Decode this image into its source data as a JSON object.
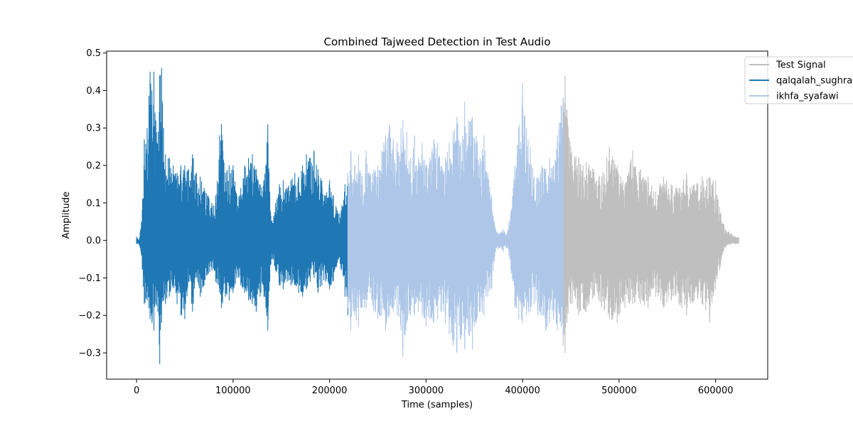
{
  "chart_data": {
    "type": "line",
    "title": "Combined Tajweed Detection in Test Audio",
    "xlabel": "Time (samples)",
    "ylabel": "Amplitude",
    "xlim": [
      -31000,
      654000
    ],
    "ylim": [
      -0.37,
      0.505
    ],
    "xticks": [
      0,
      100000,
      200000,
      300000,
      400000,
      500000,
      600000
    ],
    "yticks": [
      -0.3,
      -0.2,
      -0.1,
      0.0,
      0.1,
      0.2,
      0.3,
      0.4,
      0.5
    ],
    "grid": false,
    "legend_position": "top-right",
    "series": [
      {
        "name": "Test Signal",
        "color": "#bfbfbf",
        "envelope": {
          "x": [
            442000,
            444000,
            446000,
            450000,
            458000,
            466000,
            474000,
            482000,
            490000,
            498000,
            506000,
            514000,
            522000,
            530000,
            538000,
            546000,
            554000,
            562000,
            570000,
            578000,
            586000,
            594000,
            600000,
            604000,
            610000,
            616000,
            620000,
            624000
          ],
          "max": [
            0.38,
            0.44,
            0.35,
            0.25,
            0.22,
            0.21,
            0.19,
            0.17,
            0.25,
            0.2,
            0.15,
            0.24,
            0.19,
            0.17,
            0.13,
            0.17,
            0.15,
            0.14,
            0.18,
            0.15,
            0.17,
            0.17,
            0.16,
            0.09,
            0.03,
            0.02,
            0.01,
            0.01
          ],
          "min": [
            -0.28,
            -0.3,
            -0.22,
            -0.17,
            -0.2,
            -0.19,
            -0.15,
            -0.18,
            -0.21,
            -0.22,
            -0.18,
            -0.17,
            -0.17,
            -0.18,
            -0.15,
            -0.18,
            -0.16,
            -0.17,
            -0.2,
            -0.16,
            -0.17,
            -0.22,
            -0.13,
            -0.08,
            -0.02,
            -0.01,
            -0.01,
            -0.01
          ]
        }
      },
      {
        "name": "qalqalah_sughra",
        "color": "#1f77b4",
        "envelope": {
          "x": [
            0,
            2500,
            5000,
            8000,
            11000,
            14000,
            16000,
            18000,
            20000,
            22000,
            24000,
            26000,
            28000,
            30000,
            34000,
            38000,
            42000,
            46000,
            50000,
            54000,
            58000,
            62000,
            66000,
            70000,
            74000,
            78000,
            82000,
            86000,
            88000,
            92000,
            96000,
            100000,
            104000,
            108000,
            112000,
            116000,
            120000,
            124000,
            128000,
            132000,
            134000,
            136000,
            138000,
            140000,
            144000,
            148000,
            152000,
            156000,
            160000,
            164000,
            168000,
            172000,
            176000,
            180000,
            184000,
            188000,
            192000,
            196000,
            200000,
            204000,
            208000,
            212000,
            216000,
            219000
          ],
          "max": [
            0.01,
            0.0,
            0.05,
            0.27,
            0.3,
            0.45,
            0.4,
            0.45,
            0.32,
            0.25,
            0.44,
            0.46,
            0.3,
            0.23,
            0.22,
            0.2,
            0.18,
            0.2,
            0.2,
            0.19,
            0.23,
            0.18,
            0.17,
            0.14,
            0.12,
            0.1,
            0.12,
            0.28,
            0.31,
            0.18,
            0.2,
            0.2,
            0.12,
            0.14,
            0.2,
            0.22,
            0.23,
            0.19,
            0.15,
            0.16,
            0.2,
            0.31,
            0.13,
            0.05,
            0.1,
            0.15,
            0.16,
            0.14,
            0.16,
            0.18,
            0.17,
            0.2,
            0.23,
            0.22,
            0.24,
            0.19,
            0.16,
            0.12,
            0.16,
            0.12,
            0.08,
            0.08,
            0.15,
            0.17
          ],
          "min": [
            -0.01,
            -0.01,
            -0.04,
            -0.17,
            -0.16,
            -0.21,
            -0.22,
            -0.24,
            -0.17,
            -0.19,
            -0.33,
            -0.22,
            -0.16,
            -0.17,
            -0.15,
            -0.12,
            -0.17,
            -0.2,
            -0.21,
            -0.11,
            -0.19,
            -0.1,
            -0.15,
            -0.12,
            -0.09,
            -0.08,
            -0.11,
            -0.14,
            -0.18,
            -0.15,
            -0.16,
            -0.14,
            -0.1,
            -0.12,
            -0.14,
            -0.16,
            -0.17,
            -0.19,
            -0.15,
            -0.15,
            -0.18,
            -0.24,
            -0.11,
            -0.05,
            -0.08,
            -0.12,
            -0.13,
            -0.11,
            -0.12,
            -0.12,
            -0.14,
            -0.15,
            -0.13,
            -0.11,
            -0.1,
            -0.14,
            -0.12,
            -0.11,
            -0.13,
            -0.11,
            -0.06,
            -0.08,
            -0.15,
            -0.2
          ]
        }
      },
      {
        "name": "ikhfa_syafawi",
        "color": "#aec7e8",
        "envelope": {
          "x": [
            219000,
            222000,
            226000,
            230000,
            234000,
            238000,
            242000,
            246000,
            250000,
            254000,
            258000,
            262000,
            266000,
            270000,
            274000,
            276000,
            280000,
            284000,
            288000,
            292000,
            296000,
            300000,
            304000,
            308000,
            312000,
            316000,
            320000,
            324000,
            328000,
            332000,
            336000,
            340000,
            344000,
            348000,
            352000,
            356000,
            360000,
            364000,
            368000,
            372000,
            376000,
            380000,
            384000,
            388000,
            392000,
            396000,
            400000,
            404000,
            408000,
            412000,
            416000,
            420000,
            424000,
            428000,
            432000,
            436000,
            440000,
            442000
          ],
          "max": [
            0.18,
            0.24,
            0.2,
            0.23,
            0.17,
            0.24,
            0.18,
            0.19,
            0.2,
            0.24,
            0.28,
            0.31,
            0.27,
            0.26,
            0.3,
            0.32,
            0.29,
            0.22,
            0.28,
            0.22,
            0.26,
            0.2,
            0.22,
            0.27,
            0.26,
            0.2,
            0.22,
            0.26,
            0.29,
            0.33,
            0.26,
            0.37,
            0.32,
            0.33,
            0.28,
            0.22,
            0.28,
            0.18,
            0.12,
            0.03,
            0.02,
            0.03,
            0.02,
            0.08,
            0.2,
            0.3,
            0.42,
            0.3,
            0.25,
            0.17,
            0.17,
            0.2,
            0.19,
            0.22,
            0.2,
            0.28,
            0.36,
            0.38
          ],
          "min": [
            -0.18,
            -0.24,
            -0.2,
            -0.23,
            -0.18,
            -0.18,
            -0.14,
            -0.19,
            -0.21,
            -0.2,
            -0.24,
            -0.2,
            -0.19,
            -0.2,
            -0.24,
            -0.31,
            -0.22,
            -0.2,
            -0.2,
            -0.19,
            -0.2,
            -0.23,
            -0.21,
            -0.22,
            -0.21,
            -0.19,
            -0.22,
            -0.25,
            -0.28,
            -0.3,
            -0.26,
            -0.29,
            -0.25,
            -0.29,
            -0.22,
            -0.19,
            -0.2,
            -0.15,
            -0.13,
            -0.03,
            -0.02,
            -0.03,
            -0.02,
            -0.08,
            -0.18,
            -0.21,
            -0.22,
            -0.2,
            -0.19,
            -0.17,
            -0.2,
            -0.2,
            -0.24,
            -0.22,
            -0.21,
            -0.24,
            -0.23,
            -0.25
          ]
        }
      }
    ]
  }
}
